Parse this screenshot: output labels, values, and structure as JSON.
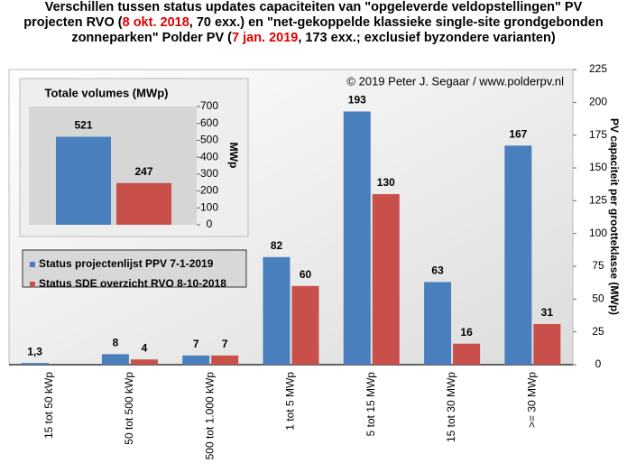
{
  "chart_data": [
    {
      "type": "bar",
      "title_parts": [
        {
          "text": "Verschillen tussen status updates capaciteiten van \"opgeleverde veldopstellingen\" PV projecten RVO (",
          "color": "#000000"
        },
        {
          "text": "8 okt. 2018",
          "color": "#e00000"
        },
        {
          "text": ", 70 exx.) en \"net-gekoppelde klassieke single-site grondgebonden zonneparken\" Polder PV (",
          "color": "#000000"
        },
        {
          "text": "7 jan. 2019",
          "color": "#e00000"
        },
        {
          "text": ", 173 exx.; exclusief byzondere varianten)",
          "color": "#000000"
        }
      ],
      "annotation": "© 2019 Peter J. Segaar / www.polderpv.nl",
      "y_label": "PV capaciteit per grootteklasse (MWp)",
      "categories": [
        "15 tot 50 kWp",
        "50 tot 500 kWp",
        "500 tot 1.000 kWp",
        "1 tot 5 MWp",
        "5 tot 15 MWp",
        "15 tot 30 MWp",
        ">= 30 MWp"
      ],
      "series": [
        {
          "name": "Status projectenlijst PPV 7-1-2019",
          "color": "#4a7fbe",
          "values": [
            1.3,
            8,
            7,
            82,
            193,
            63,
            167
          ],
          "value_labels": [
            "1,3",
            "8",
            "7",
            "82",
            "193",
            "63",
            "167"
          ]
        },
        {
          "name": "Status SDE overzicht RVO 8-10-2018",
          "color": "#c9504a",
          "values": [
            null,
            4,
            7,
            60,
            130,
            16,
            31
          ]
        }
      ],
      "ylim": [
        0,
        225
      ],
      "yticks": [
        0,
        25,
        50,
        75,
        100,
        125,
        150,
        175,
        200,
        225
      ],
      "grid": false
    },
    {
      "type": "bar",
      "title": "Totale volumes (MWp)",
      "y_label": "MWp",
      "values": [
        521,
        247
      ],
      "colors": [
        "#4a7fbe",
        "#c9504a"
      ],
      "ylim": [
        0,
        700
      ],
      "yticks": [
        0,
        100,
        200,
        300,
        400,
        500,
        600,
        700
      ]
    }
  ]
}
